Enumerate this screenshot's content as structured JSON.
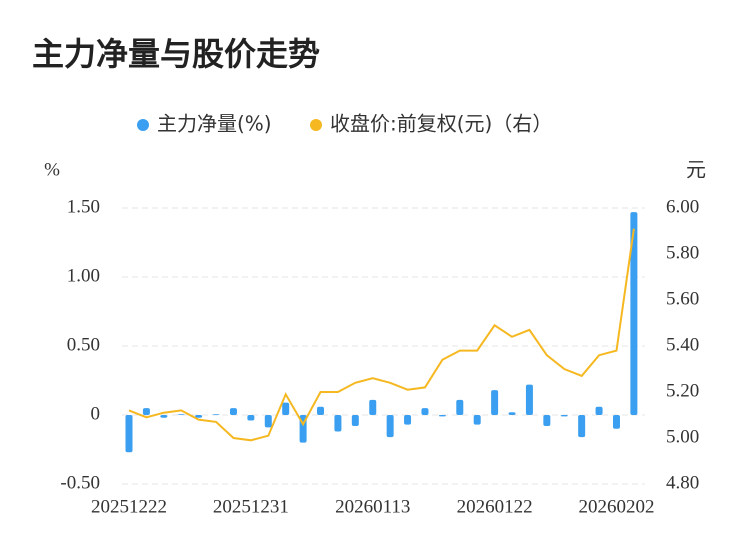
{
  "chart_data": {
    "type": "bar",
    "title": "主力净量与股价走势",
    "y_label": "%",
    "y2_label": "元",
    "categories": [
      "20251222",
      null,
      null,
      null,
      null,
      null,
      null,
      "20251231",
      null,
      null,
      null,
      null,
      null,
      null,
      "20260113",
      null,
      null,
      null,
      null,
      null,
      null,
      "20260122",
      null,
      null,
      null,
      null,
      null,
      null,
      "20260202",
      null
    ],
    "series": [
      {
        "name": "主力净量(%)",
        "type": "bar",
        "color": "#3a9ff0",
        "values": [
          -0.27,
          0.05,
          -0.02,
          0.005,
          -0.02,
          0.005,
          0.05,
          -0.04,
          -0.09,
          0.09,
          -0.2,
          0.06,
          -0.12,
          -0.08,
          0.11,
          -0.16,
          -0.07,
          0.05,
          -0.01,
          0.11,
          -0.07,
          0.18,
          0.02,
          0.22,
          -0.08,
          -0.01,
          -0.16,
          0.06,
          -0.1,
          1.47
        ]
      },
      {
        "name": "收盘价:前复权(元)（右）",
        "type": "line",
        "axis": "y2",
        "color": "#f5b820",
        "values": [
          5.12,
          5.09,
          5.11,
          5.12,
          5.08,
          5.07,
          5.0,
          4.99,
          5.01,
          5.19,
          5.06,
          5.2,
          5.2,
          5.24,
          5.26,
          5.24,
          5.21,
          5.22,
          5.34,
          5.38,
          5.38,
          5.49,
          5.44,
          5.47,
          5.36,
          5.3,
          5.27,
          5.36,
          5.38,
          5.91
        ]
      }
    ],
    "ylim": [
      -0.5,
      1.5
    ],
    "yticks": [
      {
        "value": -0.5,
        "label": "-0.50"
      },
      0,
      {
        "value": 0.5,
        "label": "0.50"
      },
      {
        "value": 1,
        "label": "1.00"
      },
      {
        "value": 1.5,
        "label": "1.50"
      }
    ],
    "y2lim": [
      4.8,
      6.0
    ],
    "y2ticks": [
      {
        "value": 4.8,
        "label": "4.80"
      },
      {
        "value": 5,
        "label": "5.00"
      },
      {
        "value": 5.2,
        "label": "5.20"
      },
      {
        "value": 5.4,
        "label": "5.40"
      },
      {
        "value": 5.6,
        "label": "5.60"
      },
      {
        "value": 5.8,
        "label": "5.80"
      },
      {
        "value": 6,
        "label": "6.00"
      }
    ],
    "grid": true
  }
}
